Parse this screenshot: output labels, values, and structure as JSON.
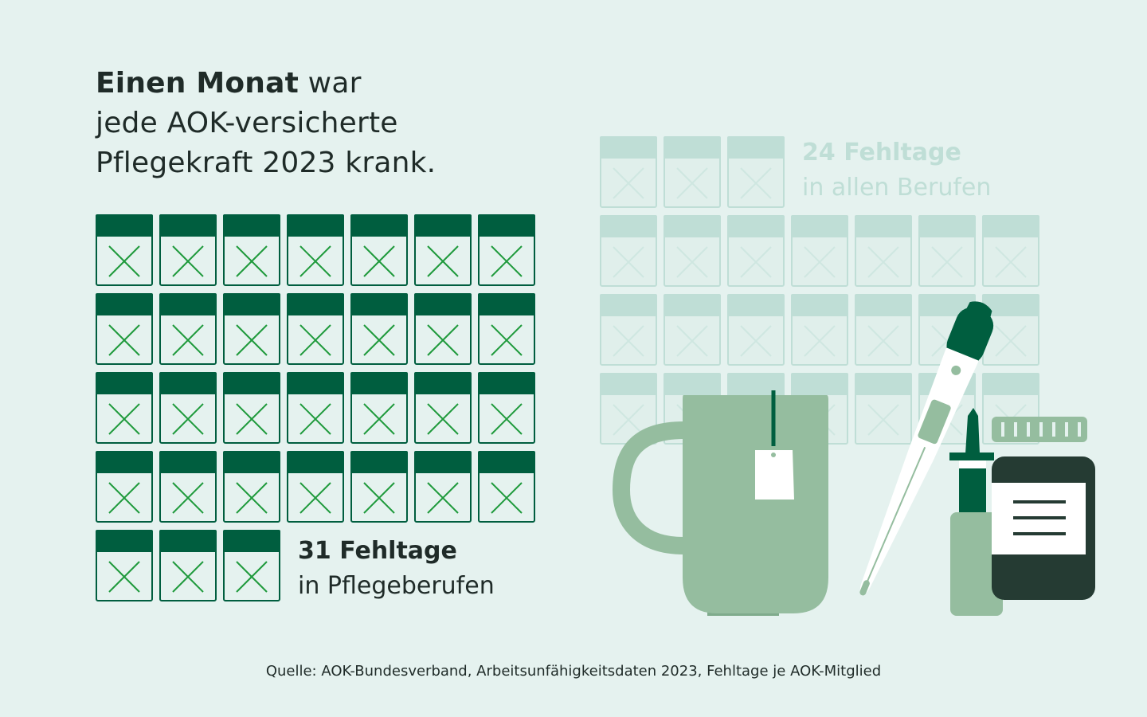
{
  "headline": {
    "bold": "Einen Monat",
    "line1_rest": " war",
    "line2": "jede AOK-versicherte",
    "line3": "Pflegekraft 2023 krank."
  },
  "chart_data": {
    "type": "pictogram",
    "unit_icon": "calendar-day-crossed-icon",
    "series": [
      {
        "value": 31,
        "label_value": "31 Fehltage",
        "label_text": "in Pflegeberufen",
        "color": "#005e3f",
        "cross_color": "#1f9a3c",
        "fill_color": "#e5f2ef"
      },
      {
        "value": 24,
        "label_value": "24 Fehltage",
        "label_text": "in allen Berufen",
        "color": "#bfded6",
        "cross_color": "#cfe7e1",
        "fill_color": "#e0efeb"
      }
    ],
    "icons_per_row": 7
  },
  "illustration": {
    "items": [
      "tea-mug-icon",
      "thermometer-icon",
      "nasal-spray-icon",
      "medicine-jar-icon"
    ],
    "colors": {
      "mug": "#95bd9f",
      "mug_dark": "#7fab8c",
      "tag": "#ffffff",
      "string": "#005e3f",
      "thermo_body": "#ffffff",
      "thermo_cap": "#005e3f",
      "spray_body": "#95bd9f",
      "spray_top": "#005e3f",
      "jar_body": "#253b33",
      "jar_lid": "#95bd9f",
      "jar_label": "#ffffff"
    }
  },
  "source": "Quelle: AOK-Bundesverband, Arbeitsunfähigkeitsdaten 2023, Fehltage je AOK-Mitglied"
}
